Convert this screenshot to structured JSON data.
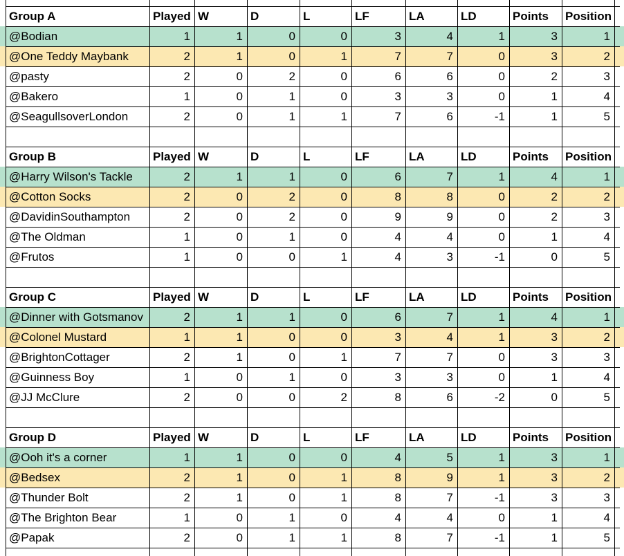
{
  "header_labels": [
    "Played",
    "W",
    "D",
    "L",
    "LF",
    "LA",
    "LD",
    "Points",
    "Position"
  ],
  "groups": [
    {
      "title": "Group A",
      "rows": [
        {
          "name": "@Bodian",
          "played": "1",
          "w": "1",
          "d": "0",
          "l": "0",
          "lf": "3",
          "la": "4",
          "ld": "1",
          "points": "3",
          "position": "1",
          "highlight": "green"
        },
        {
          "name": "@One Teddy Maybank",
          "played": "2",
          "w": "1",
          "d": "0",
          "l": "1",
          "lf": "7",
          "la": "7",
          "ld": "0",
          "points": "3",
          "position": "2",
          "highlight": "yellow"
        },
        {
          "name": "@pasty",
          "played": "2",
          "w": "0",
          "d": "2",
          "l": "0",
          "lf": "6",
          "la": "6",
          "ld": "0",
          "points": "2",
          "position": "3",
          "highlight": "none"
        },
        {
          "name": "@Bakero",
          "played": "1",
          "w": "0",
          "d": "1",
          "l": "0",
          "lf": "3",
          "la": "3",
          "ld": "0",
          "points": "1",
          "position": "4",
          "highlight": "none"
        },
        {
          "name": "@SeagullsoverLondon",
          "played": "2",
          "w": "0",
          "d": "1",
          "l": "1",
          "lf": "7",
          "la": "6",
          "ld": "-1",
          "points": "1",
          "position": "5",
          "highlight": "none"
        }
      ]
    },
    {
      "title": "Group B",
      "rows": [
        {
          "name": "@Harry Wilson's Tackle",
          "played": "2",
          "w": "1",
          "d": "1",
          "l": "0",
          "lf": "6",
          "la": "7",
          "ld": "1",
          "points": "4",
          "position": "1",
          "highlight": "green"
        },
        {
          "name": "@Cotton Socks",
          "played": "2",
          "w": "0",
          "d": "2",
          "l": "0",
          "lf": "8",
          "la": "8",
          "ld": "0",
          "points": "2",
          "position": "2",
          "highlight": "yellow"
        },
        {
          "name": "@DavidinSouthampton",
          "played": "2",
          "w": "0",
          "d": "2",
          "l": "0",
          "lf": "9",
          "la": "9",
          "ld": "0",
          "points": "2",
          "position": "3",
          "highlight": "none"
        },
        {
          "name": "@The Oldman",
          "played": "1",
          "w": "0",
          "d": "1",
          "l": "0",
          "lf": "4",
          "la": "4",
          "ld": "0",
          "points": "1",
          "position": "4",
          "highlight": "none"
        },
        {
          "name": "@Frutos",
          "played": "1",
          "w": "0",
          "d": "0",
          "l": "1",
          "lf": "4",
          "la": "3",
          "ld": "-1",
          "points": "0",
          "position": "5",
          "highlight": "none"
        }
      ]
    },
    {
      "title": "Group C",
      "rows": [
        {
          "name": "@Dinner with Gotsmanov",
          "played": "2",
          "w": "1",
          "d": "1",
          "l": "0",
          "lf": "6",
          "la": "7",
          "ld": "1",
          "points": "4",
          "position": "1",
          "highlight": "green"
        },
        {
          "name": "@Colonel Mustard",
          "played": "1",
          "w": "1",
          "d": "0",
          "l": "0",
          "lf": "3",
          "la": "4",
          "ld": "1",
          "points": "3",
          "position": "2",
          "highlight": "yellow"
        },
        {
          "name": "@BrightonCottager",
          "played": "2",
          "w": "1",
          "d": "0",
          "l": "1",
          "lf": "7",
          "la": "7",
          "ld": "0",
          "points": "3",
          "position": "3",
          "highlight": "none"
        },
        {
          "name": "@Guinness Boy",
          "played": "1",
          "w": "0",
          "d": "1",
          "l": "0",
          "lf": "3",
          "la": "3",
          "ld": "0",
          "points": "1",
          "position": "4",
          "highlight": "none"
        },
        {
          "name": "@JJ McClure",
          "played": "2",
          "w": "0",
          "d": "0",
          "l": "2",
          "lf": "8",
          "la": "6",
          "ld": "-2",
          "points": "0",
          "position": "5",
          "highlight": "none"
        }
      ]
    },
    {
      "title": "Group D",
      "rows": [
        {
          "name": "@Ooh it's a corner",
          "played": "1",
          "w": "1",
          "d": "0",
          "l": "0",
          "lf": "4",
          "la": "5",
          "ld": "1",
          "points": "3",
          "position": "1",
          "highlight": "green"
        },
        {
          "name": "@Bedsex",
          "played": "2",
          "w": "1",
          "d": "0",
          "l": "1",
          "lf": "8",
          "la": "9",
          "ld": "1",
          "points": "3",
          "position": "2",
          "highlight": "yellow"
        },
        {
          "name": "@Thunder Bolt",
          "played": "2",
          "w": "1",
          "d": "0",
          "l": "1",
          "lf": "8",
          "la": "7",
          "ld": "-1",
          "points": "3",
          "position": "3",
          "highlight": "none"
        },
        {
          "name": "@The Brighton Bear",
          "played": "1",
          "w": "0",
          "d": "1",
          "l": "0",
          "lf": "4",
          "la": "4",
          "ld": "0",
          "points": "1",
          "position": "4",
          "highlight": "none"
        },
        {
          "name": "@Papak",
          "played": "2",
          "w": "0",
          "d": "1",
          "l": "1",
          "lf": "8",
          "la": "7",
          "ld": "-1",
          "points": "1",
          "position": "5",
          "highlight": "none"
        }
      ]
    }
  ],
  "colors": {
    "first_place": "#b7e1cd",
    "second_place": "#fce8b2",
    "gridline": "#e2e2e2",
    "border": "#000000"
  }
}
